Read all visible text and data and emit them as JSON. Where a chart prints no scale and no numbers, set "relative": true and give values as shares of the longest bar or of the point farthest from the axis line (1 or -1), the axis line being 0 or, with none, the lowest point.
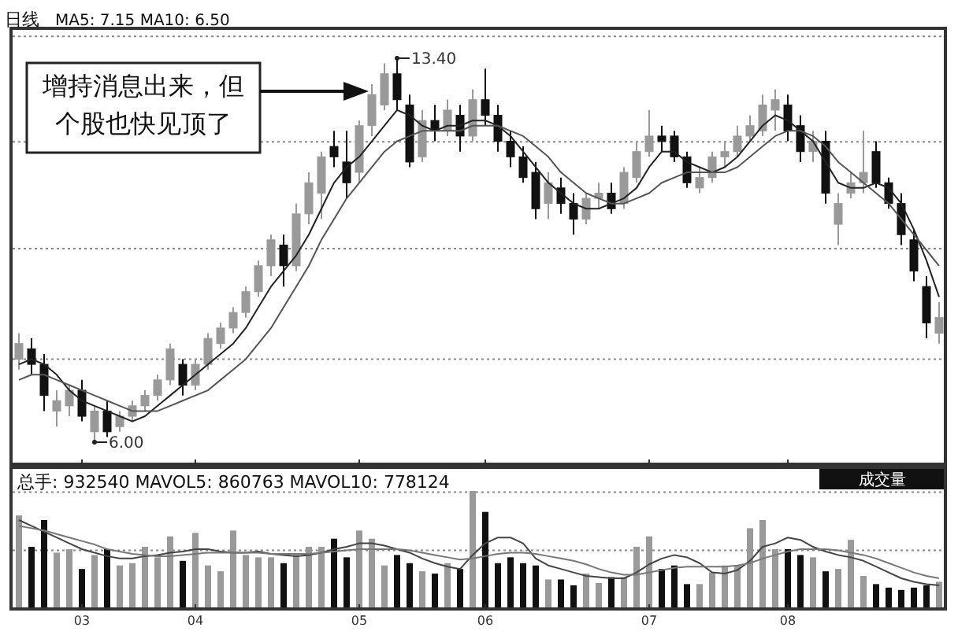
{
  "chart_data": [
    {
      "type": "candlestick",
      "title": "日线",
      "subtitle": "MA5: 7.15 MA10: 6.50",
      "tick_labels": false,
      "categories": [
        null,
        null,
        null,
        null,
        null,
        "03",
        null,
        null,
        null,
        null,
        null,
        null,
        null,
        null,
        "04",
        null,
        null,
        null,
        null,
        null,
        null,
        null,
        null,
        null,
        null,
        null,
        null,
        "05",
        null,
        null,
        null,
        null,
        null,
        null,
        null,
        null,
        null,
        "06",
        null,
        null,
        null,
        null,
        null,
        null,
        null,
        null,
        null,
        null,
        null,
        null,
        "07",
        null,
        null,
        null,
        null,
        null,
        null,
        null,
        null,
        null,
        null,
        "08",
        null,
        null,
        null,
        null,
        null,
        null,
        null,
        null,
        null,
        null,
        null,
        null
      ],
      "ohlc": [
        [
          7.6,
          8.1,
          7.4,
          7.9
        ],
        [
          7.8,
          8.0,
          7.3,
          7.5
        ],
        [
          7.5,
          7.7,
          6.6,
          6.9
        ],
        [
          6.6,
          7.0,
          6.3,
          6.8
        ],
        [
          6.7,
          7.1,
          6.5,
          7.0
        ],
        [
          7.0,
          7.2,
          6.4,
          6.5
        ],
        [
          6.2,
          6.7,
          6.0,
          6.6
        ],
        [
          6.6,
          6.8,
          6.1,
          6.2
        ],
        [
          6.3,
          6.6,
          6.2,
          6.5
        ],
        [
          6.5,
          6.8,
          6.4,
          6.7
        ],
        [
          6.7,
          7.0,
          6.6,
          6.9
        ],
        [
          6.9,
          7.3,
          6.8,
          7.2
        ],
        [
          7.2,
          7.9,
          7.1,
          7.8
        ],
        [
          7.5,
          7.6,
          6.9,
          7.1
        ],
        [
          7.1,
          7.6,
          7.0,
          7.5
        ],
        [
          7.5,
          8.1,
          7.4,
          8.0
        ],
        [
          7.9,
          8.3,
          7.8,
          8.2
        ],
        [
          8.2,
          8.6,
          8.1,
          8.5
        ],
        [
          8.5,
          9.0,
          8.4,
          8.9
        ],
        [
          8.9,
          9.5,
          8.8,
          9.4
        ],
        [
          9.4,
          10.0,
          9.2,
          9.9
        ],
        [
          9.8,
          10.0,
          9.0,
          9.4
        ],
        [
          9.4,
          10.6,
          9.3,
          10.4
        ],
        [
          10.4,
          11.2,
          10.2,
          11.0
        ],
        [
          10.8,
          11.6,
          10.3,
          11.5
        ],
        [
          11.7,
          12.0,
          11.3,
          11.5
        ],
        [
          11.4,
          12.0,
          10.7,
          11.0
        ],
        [
          11.2,
          12.2,
          11.0,
          12.1
        ],
        [
          12.1,
          12.9,
          11.9,
          12.7
        ],
        [
          12.5,
          13.3,
          12.4,
          13.1
        ],
        [
          13.1,
          13.4,
          12.4,
          12.6
        ],
        [
          12.5,
          12.7,
          11.3,
          11.4
        ],
        [
          11.5,
          12.4,
          11.4,
          12.2
        ],
        [
          12.2,
          12.5,
          11.8,
          12.0
        ],
        [
          12.0,
          12.6,
          11.9,
          12.4
        ],
        [
          12.3,
          12.5,
          11.6,
          11.9
        ],
        [
          11.9,
          12.8,
          11.8,
          12.6
        ],
        [
          12.6,
          13.2,
          12.1,
          12.3
        ],
        [
          12.3,
          12.5,
          11.6,
          11.8
        ],
        [
          11.8,
          12.0,
          11.3,
          11.5
        ],
        [
          11.5,
          11.7,
          11.0,
          11.1
        ],
        [
          11.2,
          11.4,
          10.3,
          10.5
        ],
        [
          10.6,
          11.2,
          10.3,
          11.0
        ],
        [
          10.9,
          11.1,
          10.4,
          10.6
        ],
        [
          10.6,
          10.8,
          10.0,
          10.3
        ],
        [
          10.3,
          10.8,
          10.2,
          10.7
        ],
        [
          10.7,
          11.0,
          10.5,
          10.8
        ],
        [
          10.8,
          11.0,
          10.4,
          10.5
        ],
        [
          10.6,
          11.3,
          10.5,
          11.2
        ],
        [
          11.1,
          11.8,
          11.0,
          11.6
        ],
        [
          11.6,
          12.4,
          11.5,
          11.9
        ],
        [
          11.9,
          12.1,
          11.6,
          11.8
        ],
        [
          11.9,
          12.0,
          11.4,
          11.5
        ],
        [
          11.5,
          11.6,
          10.9,
          11.0
        ],
        [
          10.9,
          11.3,
          10.8,
          11.1
        ],
        [
          11.1,
          11.6,
          11.0,
          11.5
        ],
        [
          11.5,
          11.8,
          11.3,
          11.6
        ],
        [
          11.6,
          12.1,
          11.5,
          11.9
        ],
        [
          11.9,
          12.3,
          11.8,
          12.1
        ],
        [
          12.0,
          12.7,
          11.9,
          12.5
        ],
        [
          12.4,
          12.8,
          12.0,
          12.6
        ],
        [
          12.5,
          12.7,
          11.8,
          12.0
        ],
        [
          12.1,
          12.3,
          11.4,
          11.6
        ],
        [
          11.6,
          12.0,
          11.4,
          11.8
        ],
        [
          11.8,
          12.0,
          10.6,
          10.8
        ],
        [
          10.2,
          10.8,
          9.8,
          10.6
        ],
        [
          10.8,
          11.2,
          10.7,
          11.0
        ],
        [
          11.0,
          12.0,
          10.8,
          11.2
        ],
        [
          11.6,
          11.8,
          10.9,
          11.0
        ],
        [
          11.0,
          11.1,
          10.5,
          10.6
        ],
        [
          10.6,
          10.8,
          9.8,
          10.0
        ],
        [
          9.9,
          10.1,
          9.1,
          9.3
        ],
        [
          9.0,
          9.2,
          8.0,
          8.3
        ],
        [
          8.1,
          8.7,
          7.9,
          8.4
        ]
      ],
      "colors": [
        "#999999",
        "#111111",
        "#111111",
        "#999999",
        "#999999",
        "#111111",
        "#999999",
        "#111111",
        "#999999",
        "#999999",
        "#999999",
        "#999999",
        "#999999",
        "#111111",
        "#999999",
        "#999999",
        "#999999",
        "#999999",
        "#999999",
        "#999999",
        "#999999",
        "#111111",
        "#999999",
        "#999999",
        "#999999",
        "#111111",
        "#111111",
        "#999999",
        "#999999",
        "#999999",
        "#111111",
        "#111111",
        "#999999",
        "#111111",
        "#999999",
        "#111111",
        "#999999",
        "#111111",
        "#111111",
        "#111111",
        "#111111",
        "#111111",
        "#999999",
        "#111111",
        "#111111",
        "#999999",
        "#999999",
        "#111111",
        "#999999",
        "#999999",
        "#999999",
        "#111111",
        "#111111",
        "#111111",
        "#999999",
        "#999999",
        "#999999",
        "#999999",
        "#999999",
        "#999999",
        "#999999",
        "#111111",
        "#111111",
        "#999999",
        "#111111",
        "#999999",
        "#999999",
        "#999999",
        "#111111",
        "#111111",
        "#111111",
        "#111111",
        "#111111",
        "#999999"
      ],
      "series": [
        {
          "type": "line",
          "color": "#222222",
          "values": [
            7.5,
            7.6,
            7.5,
            7.3,
            7.0,
            6.8,
            6.7,
            6.6,
            6.5,
            6.4,
            6.5,
            6.7,
            6.9,
            7.1,
            7.3,
            7.5,
            7.7,
            7.9,
            8.2,
            8.6,
            9.0,
            9.3,
            9.6,
            10.0,
            10.5,
            11.0,
            11.3,
            11.5,
            11.8,
            12.1,
            12.4,
            12.3,
            12.1,
            12.0,
            12.1,
            12.1,
            12.2,
            12.2,
            12.1,
            11.9,
            11.6,
            11.3,
            11.0,
            10.8,
            10.6,
            10.5,
            10.5,
            10.6,
            10.7,
            10.9,
            11.3,
            11.6,
            11.6,
            11.4,
            11.3,
            11.2,
            11.3,
            11.5,
            11.8,
            12.1,
            12.3,
            12.2,
            12.0,
            11.8,
            11.4,
            11.0,
            10.9,
            10.9,
            11.0,
            10.9,
            10.6,
            10.1,
            9.5,
            8.8
          ]
        },
        {
          "type": "line",
          "color": "#555555",
          "values": [
            7.2,
            7.3,
            7.3,
            7.2,
            7.1,
            7.0,
            6.9,
            6.8,
            6.7,
            6.6,
            6.6,
            6.6,
            6.7,
            6.8,
            6.9,
            7.0,
            7.2,
            7.4,
            7.6,
            7.9,
            8.2,
            8.6,
            9.0,
            9.4,
            9.9,
            10.3,
            10.7,
            11.0,
            11.3,
            11.6,
            11.8,
            11.9,
            12.0,
            12.0,
            12.0,
            12.0,
            12.1,
            12.1,
            12.1,
            12.0,
            11.9,
            11.7,
            11.5,
            11.2,
            11.0,
            10.8,
            10.7,
            10.6,
            10.6,
            10.7,
            10.8,
            11.0,
            11.1,
            11.2,
            11.2,
            11.2,
            11.2,
            11.3,
            11.5,
            11.7,
            11.9,
            12.0,
            12.0,
            11.9,
            11.7,
            11.4,
            11.2,
            11.0,
            10.8,
            10.6,
            10.3,
            10.0,
            9.7,
            9.4
          ]
        }
      ],
      "ref_lines": [
        {
          "axis": "y",
          "value": 13.82,
          "color": "#888888",
          "line_style": "dotted"
        },
        {
          "axis": "y",
          "value": 11.79,
          "color": "#888888",
          "line_style": "dotted"
        },
        {
          "axis": "y",
          "value": 9.73,
          "color": "#888888",
          "line_style": "dotted"
        },
        {
          "axis": "y",
          "value": 7.6,
          "color": "#888888",
          "line_style": "dotted"
        }
      ],
      "annotations": [
        "13.40",
        "6.00",
        "增持消息出来，但个股也快见顶了"
      ]
    },
    {
      "type": "bar",
      "relative": true,
      "title": "总手: 932540 MAVOL5: 860763 MAVOL10: 778124",
      "annotations": [
        "成交量"
      ],
      "categories": [
        null,
        null,
        null,
        null,
        null,
        "03",
        null,
        null,
        null,
        null,
        null,
        null,
        null,
        null,
        "04",
        null,
        null,
        null,
        null,
        null,
        null,
        null,
        null,
        null,
        null,
        null,
        null,
        "05",
        null,
        null,
        null,
        null,
        null,
        null,
        null,
        null,
        null,
        "06",
        null,
        null,
        null,
        null,
        null,
        null,
        null,
        null,
        null,
        null,
        null,
        null,
        "07",
        null,
        null,
        null,
        null,
        null,
        null,
        null,
        null,
        null,
        null,
        "08",
        null,
        null,
        null,
        null,
        null,
        null,
        null,
        null,
        null,
        null,
        null,
        null
      ],
      "values": [
        0.79,
        0.52,
        0.75,
        0.47,
        0.5,
        0.33,
        0.45,
        0.5,
        0.36,
        0.38,
        0.52,
        0.43,
        0.61,
        0.4,
        0.64,
        0.36,
        0.31,
        0.66,
        0.45,
        0.43,
        0.43,
        0.38,
        0.45,
        0.52,
        0.52,
        0.59,
        0.43,
        0.66,
        0.59,
        0.36,
        0.45,
        0.38,
        0.31,
        0.29,
        0.38,
        0.33,
        1,
        0.82,
        0.38,
        0.43,
        0.38,
        0.36,
        0.24,
        0.24,
        0.19,
        0.29,
        0.21,
        0.26,
        0.26,
        0.52,
        0.61,
        0.33,
        0.36,
        0.2,
        0.2,
        0.3,
        0.36,
        0.36,
        0.68,
        0.75,
        0.5,
        0.5,
        0.45,
        0.43,
        0.31,
        0.33,
        0.58,
        0.27,
        0.2,
        0.17,
        0.15,
        0.17,
        0.19,
        0.22
      ],
      "colors": [
        "#999999",
        "#111111",
        "#111111",
        "#999999",
        "#999999",
        "#111111",
        "#999999",
        "#111111",
        "#999999",
        "#999999",
        "#999999",
        "#999999",
        "#999999",
        "#111111",
        "#999999",
        "#999999",
        "#999999",
        "#999999",
        "#999999",
        "#999999",
        "#999999",
        "#111111",
        "#999999",
        "#999999",
        "#999999",
        "#111111",
        "#111111",
        "#999999",
        "#999999",
        "#999999",
        "#111111",
        "#111111",
        "#999999",
        "#111111",
        "#999999",
        "#111111",
        "#999999",
        "#111111",
        "#111111",
        "#111111",
        "#111111",
        "#111111",
        "#999999",
        "#111111",
        "#111111",
        "#999999",
        "#999999",
        "#111111",
        "#999999",
        "#999999",
        "#999999",
        "#111111",
        "#111111",
        "#111111",
        "#999999",
        "#999999",
        "#999999",
        "#999999",
        "#999999",
        "#999999",
        "#999999",
        "#111111",
        "#111111",
        "#999999",
        "#111111",
        "#999999",
        "#999999",
        "#999999",
        "#111111",
        "#111111",
        "#111111",
        "#111111",
        "#111111",
        "#999999"
      ],
      "series": [
        {
          "type": "line",
          "color": "#444444",
          "values": [
            0.75,
            0.7,
            0.65,
            0.6,
            0.55,
            0.5,
            0.47,
            0.44,
            0.42,
            0.42,
            0.44,
            0.45,
            0.47,
            0.48,
            0.5,
            0.5,
            0.48,
            0.47,
            0.47,
            0.48,
            0.46,
            0.45,
            0.44,
            0.45,
            0.47,
            0.5,
            0.52,
            0.55,
            0.55,
            0.53,
            0.5,
            0.47,
            0.42,
            0.38,
            0.35,
            0.33,
            0.45,
            0.55,
            0.6,
            0.6,
            0.55,
            0.42,
            0.36,
            0.33,
            0.3,
            0.27,
            0.26,
            0.25,
            0.25,
            0.3,
            0.37,
            0.42,
            0.45,
            0.43,
            0.38,
            0.3,
            0.29,
            0.32,
            0.4,
            0.52,
            0.55,
            0.6,
            0.58,
            0.52,
            0.48,
            0.45,
            0.43,
            0.4,
            0.35,
            0.3,
            0.25,
            0.22,
            0.2,
            0.19
          ]
        },
        {
          "type": "line",
          "color": "#777777",
          "values": [
            0.7,
            0.68,
            0.66,
            0.63,
            0.6,
            0.57,
            0.54,
            0.5,
            0.48,
            0.46,
            0.45,
            0.44,
            0.44,
            0.45,
            0.46,
            0.47,
            0.47,
            0.47,
            0.47,
            0.47,
            0.46,
            0.46,
            0.46,
            0.46,
            0.47,
            0.48,
            0.49,
            0.5,
            0.5,
            0.5,
            0.5,
            0.49,
            0.47,
            0.45,
            0.43,
            0.41,
            0.42,
            0.44,
            0.46,
            0.47,
            0.47,
            0.46,
            0.44,
            0.42,
            0.4,
            0.37,
            0.33,
            0.3,
            0.28,
            0.28,
            0.3,
            0.32,
            0.34,
            0.35,
            0.35,
            0.35,
            0.35,
            0.36,
            0.38,
            0.42,
            0.45,
            0.48,
            0.5,
            0.5,
            0.5,
            0.49,
            0.47,
            0.45,
            0.42,
            0.38,
            0.34,
            0.3,
            0.27,
            0.25
          ]
        }
      ],
      "ref_lines": [
        {
          "axis": "y",
          "value": 0.99,
          "color": "#888888",
          "line_style": "dotted"
        },
        {
          "axis": "y",
          "value": 0.49,
          "color": "#888888",
          "line_style": "dotted"
        }
      ]
    }
  ]
}
